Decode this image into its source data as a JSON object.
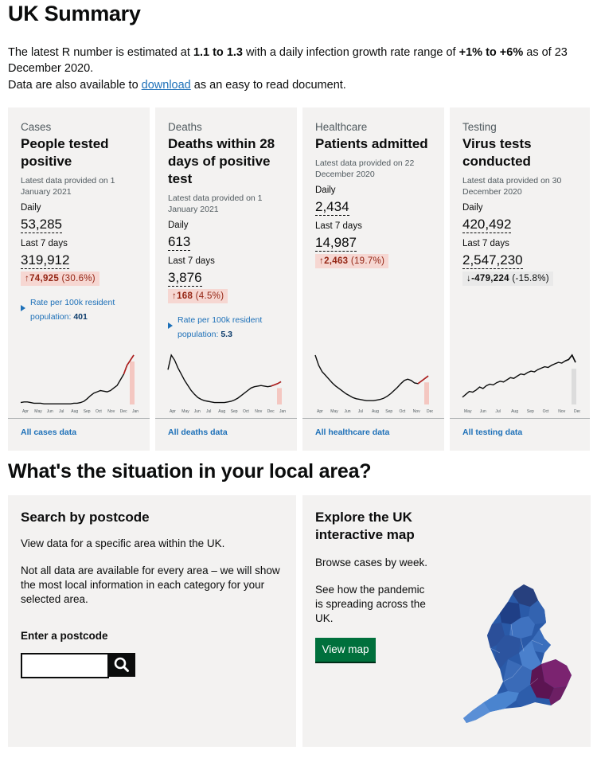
{
  "page": {
    "title": "UK Summary",
    "intro": {
      "p1": "The latest R number is estimated at",
      "r_range": "1.1 to 1.3",
      "p2": "with a daily infection growth rate range of",
      "growth": "+1% to +6%",
      "p3": "as of 23 December 2020."
    },
    "data_pre": "Data are also available to",
    "download_link": "download",
    "data_post": "as an easy to read document."
  },
  "cards": [
    {
      "category": "Cases",
      "heading": "People tested positive",
      "latest": "Latest data provided on 1 January 2021",
      "daily_label": "Daily",
      "daily_value": "53,285",
      "week_label": "Last 7 days",
      "week_value": "319,912",
      "change_value": "74,925",
      "change_pct": "(30.6%)",
      "change_dir": "up",
      "rate_text": "Rate per 100k resident population:",
      "rate_value": "401",
      "link": "All cases data",
      "spark": {
        "color": "#b21e1e",
        "highlight": "#f4c7c1",
        "values": [
          3,
          4,
          4,
          3,
          2,
          2,
          2,
          1,
          1,
          1,
          1,
          1,
          1,
          1,
          1,
          1,
          2,
          2,
          3,
          5,
          9,
          14,
          18,
          20,
          22,
          21,
          20,
          22,
          26,
          30,
          39,
          48,
          62,
          70,
          78
        ],
        "months": [
          "Apr",
          "May",
          "Jun",
          "Jul",
          "Aug",
          "Sep",
          "Oct",
          "Nov",
          "Dec",
          "Jan"
        ]
      }
    },
    {
      "category": "Deaths",
      "heading": "Deaths within 28 days of positive test",
      "latest": "Latest data provided on 1 January 2021",
      "daily_label": "Daily",
      "daily_value": "613",
      "week_label": "Last 7 days",
      "week_value": "3,876",
      "change_value": "168",
      "change_pct": "(4.5%)",
      "change_dir": "up",
      "rate_text": "Rate per 100k resident population:",
      "rate_value": "5.3",
      "link": "All deaths data",
      "spark": {
        "color": "#b21e1e",
        "highlight": "#f4c7c1",
        "values": [
          55,
          78,
          70,
          58,
          48,
          38,
          30,
          22,
          16,
          11,
          8,
          6,
          5,
          4,
          3,
          3,
          3,
          3,
          4,
          5,
          7,
          10,
          14,
          18,
          22,
          26,
          28,
          29,
          30,
          29,
          28,
          29,
          31,
          33,
          36
        ],
        "months": [
          "Apr",
          "May",
          "Jun",
          "Jul",
          "Aug",
          "Sep",
          "Oct",
          "Nov",
          "Dec",
          "Jan"
        ]
      }
    },
    {
      "category": "Healthcare",
      "heading": "Patients admitted",
      "latest": "Latest data provided on 22 December 2020",
      "daily_label": "Daily",
      "daily_value": "2,434",
      "week_label": "Last 7 days",
      "week_value": "14,987",
      "change_value": "2,463",
      "change_pct": "(19.7%)",
      "change_dir": "up",
      "rate_text": "",
      "rate_value": "",
      "link": "All healthcare data",
      "spark": {
        "color": "#b21e1e",
        "highlight": "#f4c7c1",
        "values": [
          78,
          62,
          52,
          46,
          40,
          34,
          29,
          25,
          21,
          17,
          14,
          11,
          9,
          8,
          7,
          6,
          6,
          6,
          7,
          8,
          10,
          13,
          17,
          22,
          27,
          33,
          38,
          40,
          38,
          34,
          33,
          37,
          41,
          45
        ],
        "months": [
          "Apr",
          "May",
          "Jun",
          "Jul",
          "Aug",
          "Sep",
          "Oct",
          "Nov",
          "Dec"
        ]
      }
    },
    {
      "category": "Testing",
      "heading": "Virus tests conducted",
      "latest": "Latest data provided on 30 December 2020",
      "daily_label": "Daily",
      "daily_value": "420,492",
      "week_label": "Last 7 days",
      "week_value": "2,547,230",
      "change_value": "-479,224",
      "change_pct": "(-15.8%)",
      "change_dir": "down",
      "rate_text": "",
      "rate_value": "",
      "link": "All testing data",
      "spark": {
        "color": "#0b0c0c",
        "highlight": "#dcdcdc",
        "values": [
          10,
          14,
          18,
          17,
          20,
          24,
          22,
          26,
          28,
          27,
          30,
          32,
          31,
          34,
          37,
          36,
          39,
          42,
          41,
          44,
          46,
          45,
          48,
          50,
          52,
          51,
          54,
          56,
          58,
          57,
          60,
          62,
          68,
          58
        ],
        "months": [
          "May",
          "Jun",
          "Jul",
          "Aug",
          "Sep",
          "Oct",
          "Nov",
          "Dec"
        ]
      }
    }
  ],
  "local": {
    "heading": "What's the situation in your local area?",
    "search": {
      "heading": "Search by postcode",
      "p1": "View data for a specific area within the UK.",
      "p2": "Not all data are available for every area – we will show the most local information in each category for your selected area.",
      "label": "Enter a postcode",
      "input_value": "",
      "button_icon": "search-icon"
    },
    "map": {
      "heading": "Explore the UK interactive map",
      "p1": "Browse cases by week.",
      "p2": "See how the pandemic is spreading across the UK.",
      "button": "View map"
    }
  }
}
